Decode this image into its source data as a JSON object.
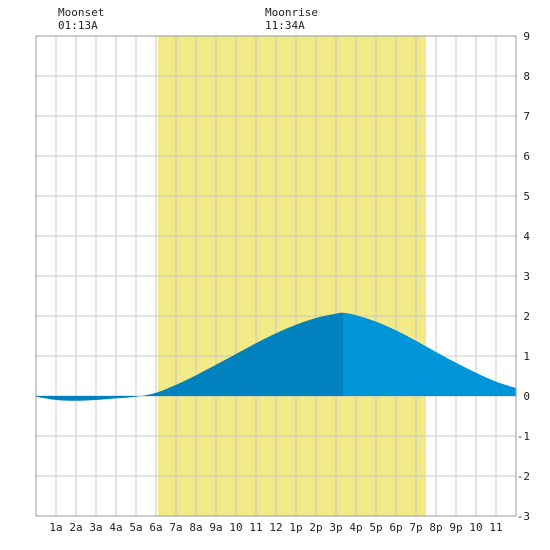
{
  "chart_data": {
    "type": "area",
    "title": "",
    "xlabel": "",
    "ylabel": "",
    "x_ticks": [
      "1a",
      "2a",
      "3a",
      "4a",
      "5a",
      "6a",
      "7a",
      "8a",
      "9a",
      "10",
      "11",
      "12",
      "1p",
      "2p",
      "3p",
      "4p",
      "5p",
      "6p",
      "7p",
      "8p",
      "9p",
      "10",
      "11"
    ],
    "y_ticks": [
      9,
      8,
      7,
      6,
      5,
      4,
      3,
      2,
      1,
      0,
      -1,
      -2,
      -3
    ],
    "xlim": [
      0,
      24
    ],
    "ylim": [
      -3,
      9
    ],
    "grid": true,
    "daylight": {
      "start_hour": 6.1,
      "end_hour": 19.5
    },
    "moon_events": [
      {
        "label": "Moonset",
        "time": "01:13A",
        "hour": 1.22
      },
      {
        "label": "Moonrise",
        "time": "11:34A",
        "hour": 11.57
      }
    ],
    "tide": {
      "peak_hour": 15.35,
      "peak_value": 2.08,
      "series": [
        {
          "x": 0,
          "y": -0.02
        },
        {
          "x": 1,
          "y": -0.1
        },
        {
          "x": 2,
          "y": -0.12
        },
        {
          "x": 3,
          "y": -0.1
        },
        {
          "x": 4,
          "y": -0.06
        },
        {
          "x": 5,
          "y": -0.02
        },
        {
          "x": 6,
          "y": 0.08
        },
        {
          "x": 7,
          "y": 0.28
        },
        {
          "x": 8,
          "y": 0.52
        },
        {
          "x": 9,
          "y": 0.78
        },
        {
          "x": 10,
          "y": 1.05
        },
        {
          "x": 11,
          "y": 1.32
        },
        {
          "x": 12,
          "y": 1.57
        },
        {
          "x": 13,
          "y": 1.78
        },
        {
          "x": 14,
          "y": 1.95
        },
        {
          "x": 15,
          "y": 2.06
        },
        {
          "x": 15.35,
          "y": 2.08
        },
        {
          "x": 16,
          "y": 2.02
        },
        {
          "x": 17,
          "y": 1.86
        },
        {
          "x": 18,
          "y": 1.64
        },
        {
          "x": 19,
          "y": 1.38
        },
        {
          "x": 20,
          "y": 1.1
        },
        {
          "x": 21,
          "y": 0.83
        },
        {
          "x": 22,
          "y": 0.58
        },
        {
          "x": 23,
          "y": 0.36
        },
        {
          "x": 24,
          "y": 0.2
        }
      ]
    }
  },
  "colors": {
    "background": "#ffffff",
    "daylight": "#f2ea86",
    "grid": "#c8c8c8",
    "tide_rising": "#0082bf",
    "tide_falling": "#0094d8",
    "text": "#222222"
  }
}
